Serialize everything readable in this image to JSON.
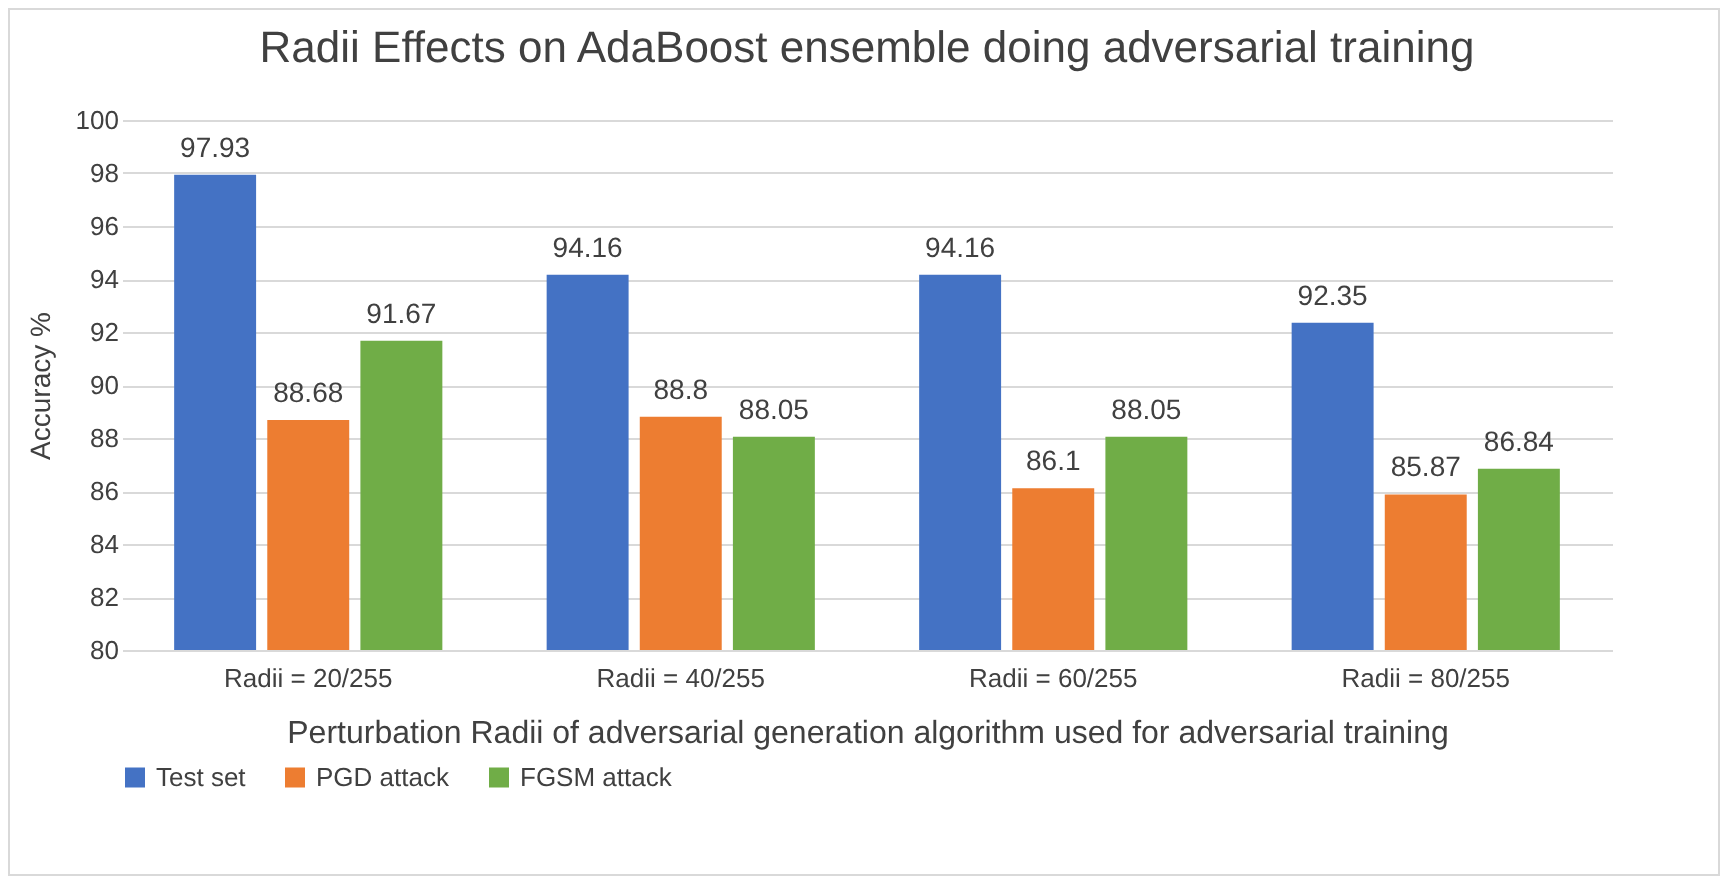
{
  "chart_data": {
    "type": "bar",
    "title": "Radii Effects on AdaBoost ensemble doing adversarial training",
    "xlabel": "Perturbation Radii of adversarial generation algorithm used for adversarial training",
    "ylabel": "Accuracy %",
    "categories": [
      "Radii = 20/255",
      "Radii = 40/255",
      "Radii = 60/255",
      "Radii = 80/255"
    ],
    "series": [
      {
        "name": "Test set",
        "color": "#4472c4",
        "values": [
          97.93,
          94.16,
          94.16,
          92.35
        ]
      },
      {
        "name": "PGD attack",
        "color": "#ed7d31",
        "values": [
          88.68,
          88.8,
          86.1,
          85.87
        ]
      },
      {
        "name": "FGSM attack",
        "color": "#70ad47",
        "values": [
          91.67,
          88.05,
          88.05,
          86.84
        ]
      }
    ],
    "ylim": [
      80,
      100
    ],
    "yticks": [
      80,
      82,
      84,
      86,
      88,
      90,
      92,
      94,
      96,
      98,
      100
    ],
    "grid": "y",
    "legend": "bottom",
    "data_labels": true
  }
}
